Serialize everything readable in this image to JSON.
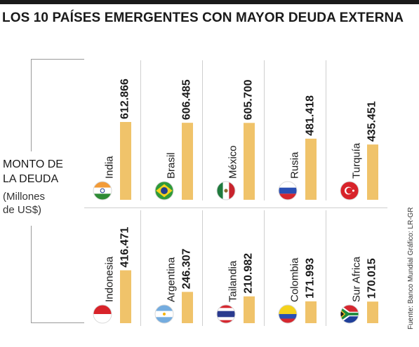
{
  "title": "LOS 10 PAÍSES EMERGENTES CON MAYOR DEUDA EXTERNA",
  "label": {
    "line1": "MONTO DE",
    "line2": "LA DEUDA",
    "unit1": "(Millones",
    "unit2": "de US$)"
  },
  "source": "Fuente: Banco Mundial   Gráfico: LR-GR",
  "colors": {
    "bar": "#f0c36a",
    "text": "#1a1a1a",
    "grid": "#cfcfcf"
  },
  "chart_data": {
    "type": "bar",
    "title": "LOS 10 PAÍSES EMERGENTES CON MAYOR DEUDA EXTERNA",
    "ylabel": "MONTO DE LA DEUDA (Millones de US$)",
    "categories": [
      "India",
      "Brasil",
      "México",
      "Rusia",
      "Turquía",
      "Indonesia",
      "Argentina",
      "Tailandia",
      "Colombia",
      "Sur Africa"
    ],
    "values": [
      612866,
      606485,
      605700,
      481418,
      435451,
      416471,
      246307,
      210982,
      171993,
      170015
    ],
    "value_labels": [
      "612.866",
      "606.485",
      "605.700",
      "481.418",
      "435.451",
      "416.471",
      "246.307",
      "210.982",
      "171.993",
      "170.015"
    ],
    "flags": [
      "india-flag",
      "brazil-flag",
      "mexico-flag",
      "russia-flag",
      "turkey-flag",
      "indonesia-flag",
      "argentina-flag",
      "thailand-flag",
      "colombia-flag",
      "south-africa-flag"
    ]
  }
}
